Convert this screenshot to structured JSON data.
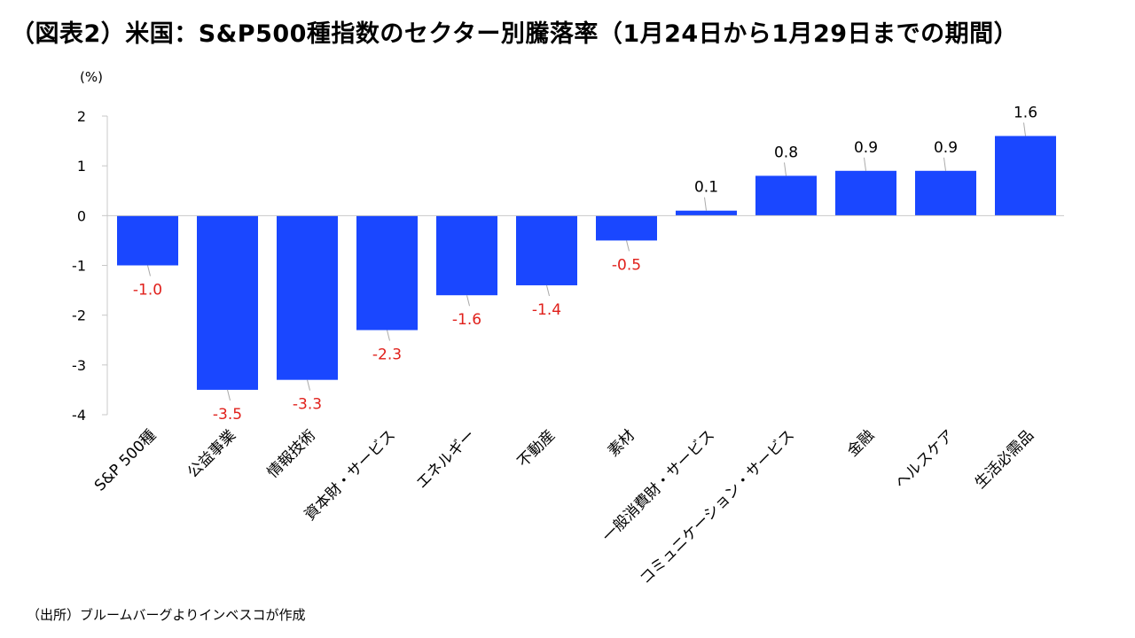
{
  "title": "（図表2）米国：S&P500種指数のセクター別騰落率（1月24日から1月29日までの期間）",
  "source": "（出所）ブルームバーグよりインベスコが作成",
  "colors": {
    "bar": "#1a47ff",
    "negative_label": "#e0201b",
    "positive_label": "#000000",
    "axis": "#c8c8c8"
  },
  "chart_data": {
    "type": "bar",
    "title": "（図表2）米国：S&P500種指数のセクター別騰落率（1月24日から1月29日までの期間）",
    "ylabel": "(%)",
    "xlabel": "",
    "ylim": [
      -4,
      2
    ],
    "yticks": [
      2,
      1,
      0,
      -1,
      -2,
      -3,
      -4
    ],
    "grid": false,
    "categories": [
      "S&P 500種",
      "公益事業",
      "情報技術",
      "資本財・サービス",
      "エネルギー",
      "不動産",
      "素材",
      "一般消費財・サービス",
      "コミュニケーション・サービス",
      "金融",
      "ヘルスケア",
      "生活必需品"
    ],
    "values": [
      -1.0,
      -3.5,
      -3.3,
      -2.3,
      -1.6,
      -1.4,
      -0.5,
      0.1,
      0.8,
      0.9,
      0.9,
      1.6
    ],
    "labels": [
      "-1.0",
      "-3.5",
      "-3.3",
      "-2.3",
      "-1.6",
      "-1.4",
      "-0.5",
      "0.1",
      "0.8",
      "0.9",
      "0.9",
      "1.6"
    ]
  }
}
